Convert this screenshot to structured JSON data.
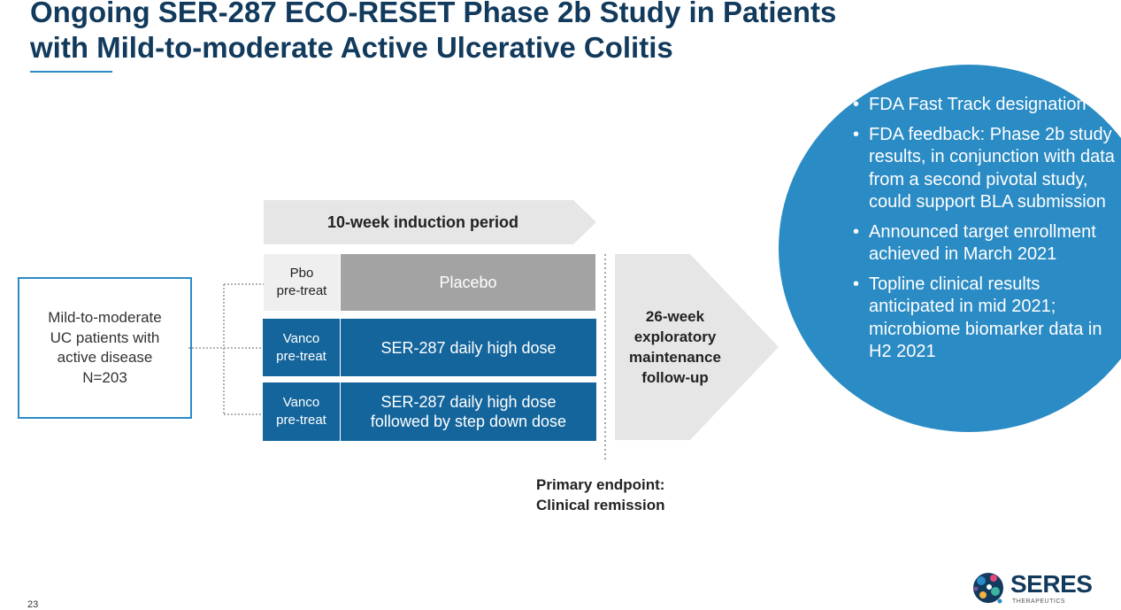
{
  "title": "Ongoing SER-287 ECO-RESET Phase 2b Study in Patients\nwith Mild-to-moderate Active Ulcerative Colitis",
  "bullets": [
    "FDA Fast Track designation",
    "FDA feedback: Phase 2b study results, in conjunction with data from a second pivotal study, could support BLA submission",
    "Announced target enrollment achieved in March 2021",
    "Topline clinical results anticipated in mid 2021; microbiome biomarker data in H2 2021"
  ],
  "bullet_char": "•",
  "population": "Mild-to-moderate\nUC patients with\nactive disease\nN=203",
  "induction_label": "10-week induction period",
  "arms": [
    {
      "pretreat": "Pbo\npre-treat",
      "treatment": "Placebo"
    },
    {
      "pretreat": "Vanco\npre-treat",
      "treatment": "SER-287 daily high dose"
    },
    {
      "pretreat": "Vanco\npre-treat",
      "treatment": "SER-287 daily high dose\nfollowed by step down dose"
    }
  ],
  "maintenance_label": "26-week\nexploratory\nmaintenance\nfollow-up",
  "endpoint": "Primary endpoint:\nClinical remission",
  "page_number": "23",
  "logo": {
    "name": "SERES",
    "sub": "THERAPEUTICS"
  },
  "colors": {
    "title": "#113a5c",
    "accent_blue": "#2b8bc4",
    "arm_blue": "#14659c",
    "placebo_gray": "#a3a3a3",
    "arrow_gray": "#e6e6e6"
  }
}
